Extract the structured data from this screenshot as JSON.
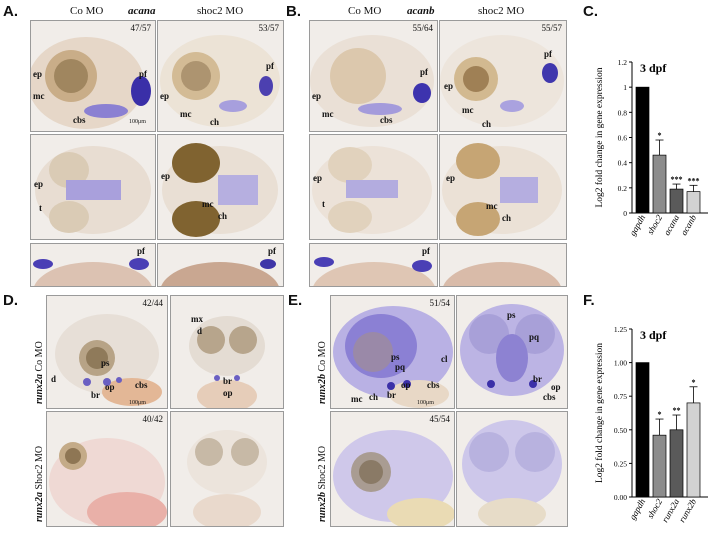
{
  "panels": {
    "A": {
      "label": "A.",
      "header_left": "Co MO",
      "header_gene": "acana",
      "header_right": "shoc2 MO",
      "counts": [
        "47/57",
        "53/57"
      ],
      "lat_co_labels": [
        "ep",
        "pf",
        "mc",
        "cbs"
      ],
      "lat_mo_labels": [
        "pf",
        "ep",
        "mc",
        "ch"
      ],
      "ven_co_labels": [
        "ep",
        "t"
      ],
      "ven_mo_labels": [
        "ep",
        "mc",
        "ch"
      ],
      "fin_co_labels": [
        "pf"
      ],
      "fin_mo_labels": [
        "pf"
      ],
      "scale": "100μm"
    },
    "B": {
      "label": "B.",
      "header_left": "Co MO",
      "header_gene": "acanb",
      "header_right": "shoc2 MO",
      "counts": [
        "55/64",
        "55/57"
      ],
      "lat_co_labels": [
        "pf",
        "ep",
        "mc",
        "cbs"
      ],
      "lat_mo_labels": [
        "pf",
        "ep",
        "mc",
        "ch"
      ],
      "ven_co_labels": [
        "ep",
        "t"
      ],
      "ven_mo_labels": [
        "ep",
        "mc",
        "ch"
      ],
      "fin_co_labels": [
        "pf"
      ],
      "scale": "100μm"
    },
    "D": {
      "label": "D.",
      "row1_gene": "runx2a",
      "row1_cond": "Co MO",
      "row2_gene": "runx2a",
      "row2_cond": "Shoc2 MO",
      "counts": [
        "42/44",
        "40/42"
      ],
      "lat_labels": [
        "ps",
        "d",
        "op",
        "cbs",
        "br"
      ],
      "ven_labels": [
        "mx",
        "d",
        "br",
        "op"
      ],
      "scale": "100μm"
    },
    "E": {
      "label": "E.",
      "row1_gene": "runx2b",
      "row1_cond": "Co MO",
      "row2_gene": "runx2b",
      "row2_cond": "Shoc2 MO",
      "counts": [
        "51/54",
        "45/54"
      ],
      "lat_labels": [
        "ps",
        "pq",
        "cl",
        "op",
        "cbs",
        "mc",
        "ch",
        "br"
      ],
      "ven_labels": [
        "ps",
        "pq",
        "br",
        "op",
        "cbs"
      ],
      "scale": "100μm"
    }
  },
  "chart_data": [
    {
      "panel": "C.",
      "type": "bar",
      "title": "3 dpf",
      "ylabel": "Log2 fold change in gene expression",
      "categories": [
        "gapdh",
        "shoc2",
        "acana",
        "acanb"
      ],
      "values": [
        1.0,
        0.46,
        0.19,
        0.17
      ],
      "errors": [
        0.0,
        0.12,
        0.04,
        0.05
      ],
      "significance": [
        "",
        "*",
        "***",
        "***"
      ],
      "ylim": [
        0,
        1.2
      ],
      "yticks": [
        "0",
        "0.2",
        "0.4",
        "0.6",
        "0.8",
        "1",
        "1.2"
      ],
      "colors": [
        "#000000",
        "#8c8c8c",
        "#5a5a5a",
        "#d2d2d2"
      ]
    },
    {
      "panel": "F.",
      "type": "bar",
      "title": "3 dpf",
      "ylabel": "Log2 fold change in gene expression",
      "categories": [
        "gapdh",
        "shoc2",
        "runx2a",
        "runx2b"
      ],
      "values": [
        1.0,
        0.46,
        0.5,
        0.7
      ],
      "errors": [
        0.0,
        0.12,
        0.11,
        0.12
      ],
      "significance": [
        "",
        "*",
        "**",
        "*"
      ],
      "ylim": [
        0,
        1.25
      ],
      "yticks": [
        "0.00",
        "0.25",
        "0.50",
        "0.75",
        "1.00",
        "1.25"
      ],
      "colors": [
        "#000000",
        "#8c8c8c",
        "#5a5a5a",
        "#d2d2d2"
      ]
    }
  ]
}
